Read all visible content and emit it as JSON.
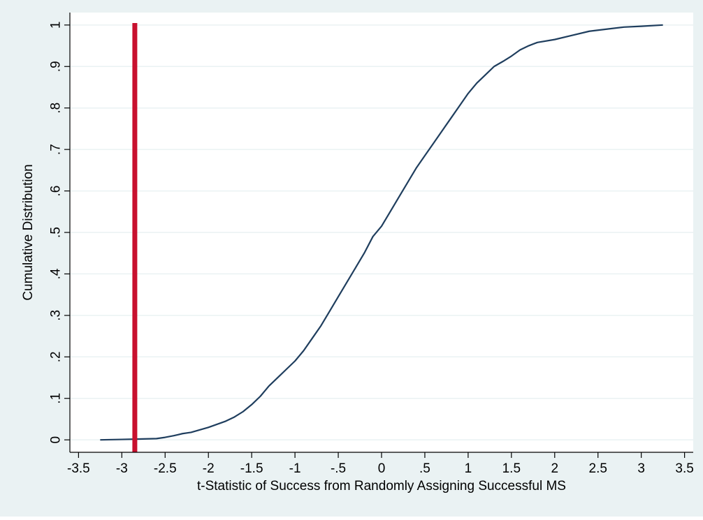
{
  "chart_data": {
    "type": "line",
    "title": "",
    "xlabel": "t-Statistic of Success from Randomly Assigning Successful MS",
    "ylabel": "Cumulative Distribution",
    "xlim": [
      -3.6,
      3.6
    ],
    "ylim": [
      -0.03,
      1.03
    ],
    "x_ticks": [
      -3.5,
      -3,
      -2.5,
      -2,
      -1.5,
      -1,
      -0.5,
      0,
      0.5,
      1,
      1.5,
      2,
      2.5,
      3,
      3.5
    ],
    "x_tick_labels": [
      "-3.5",
      "-3",
      "-2.5",
      "-2",
      "-1.5",
      "-1",
      "-.5",
      "0",
      ".5",
      "1",
      "1.5",
      "2",
      "2.5",
      "3",
      "3.5"
    ],
    "y_ticks": [
      0,
      0.1,
      0.2,
      0.3,
      0.4,
      0.5,
      0.6,
      0.7,
      0.8,
      0.9,
      1
    ],
    "y_tick_labels": [
      "0",
      ".1",
      ".2",
      ".3",
      ".4",
      ".5",
      ".6",
      ".7",
      ".8",
      ".9",
      "1"
    ],
    "grid": "horizontal",
    "series": [
      {
        "color": "#1f3e5e",
        "x": [
          -3.25,
          -3.0,
          -2.8,
          -2.6,
          -2.5,
          -2.4,
          -2.3,
          -2.2,
          -2.0,
          -1.8,
          -1.7,
          -1.6,
          -1.5,
          -1.4,
          -1.3,
          -1.2,
          -1.1,
          -1.0,
          -0.9,
          -0.8,
          -0.7,
          -0.6,
          -0.5,
          -0.4,
          -0.3,
          -0.2,
          -0.1,
          0.0,
          0.1,
          0.2,
          0.3,
          0.4,
          0.5,
          0.6,
          0.7,
          0.8,
          0.9,
          1.0,
          1.1,
          1.2,
          1.3,
          1.4,
          1.5,
          1.6,
          1.7,
          1.8,
          2.0,
          2.2,
          2.4,
          2.6,
          2.8,
          3.0,
          3.25
        ],
        "y": [
          0.0,
          0.001,
          0.002,
          0.003,
          0.006,
          0.01,
          0.015,
          0.018,
          0.03,
          0.045,
          0.055,
          0.068,
          0.085,
          0.105,
          0.13,
          0.15,
          0.17,
          0.19,
          0.215,
          0.245,
          0.275,
          0.31,
          0.345,
          0.38,
          0.415,
          0.45,
          0.49,
          0.515,
          0.55,
          0.585,
          0.62,
          0.655,
          0.685,
          0.715,
          0.745,
          0.775,
          0.805,
          0.835,
          0.86,
          0.88,
          0.9,
          0.912,
          0.925,
          0.94,
          0.95,
          0.958,
          0.965,
          0.975,
          0.985,
          0.99,
          0.995,
          0.997,
          1.0
        ]
      }
    ],
    "reference_line": {
      "x": -2.85,
      "color": "#c8102e"
    },
    "colors": {
      "outer_background": "#eaf2f3",
      "plot_background": "#ffffff",
      "grid": "#eaf2f3",
      "axis": "#000000"
    }
  }
}
